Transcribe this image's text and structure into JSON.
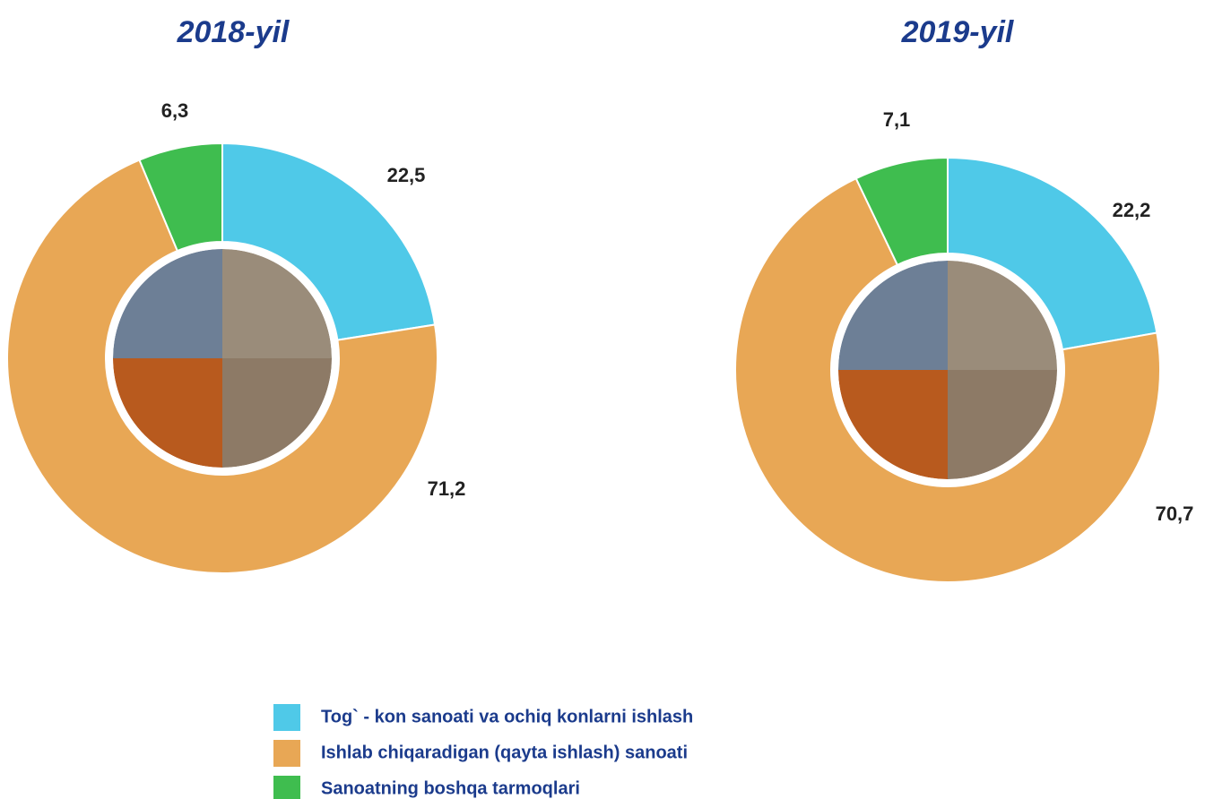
{
  "chart_data": [
    {
      "type": "pie",
      "title": "2018-yil",
      "values": [
        22.5,
        71.2,
        6.3
      ],
      "value_labels": [
        "22,5",
        "71,2",
        "6,3"
      ]
    },
    {
      "type": "pie",
      "title": "2019-yil",
      "values": [
        22.2,
        70.7,
        7.1
      ],
      "value_labels": [
        "22,2",
        "70,7",
        "7,1"
      ]
    }
  ],
  "legend": {
    "categories": [
      "Tog` - kon sanoati va ochiq konlarni ishlash",
      "Ishlab chiqaradigan (qayta ishlash) sanoati",
      "Sanoatning boshqa tarmoqlari"
    ],
    "colors": [
      "#4fc9e8",
      "#e8a755",
      "#3fbd4f"
    ]
  }
}
